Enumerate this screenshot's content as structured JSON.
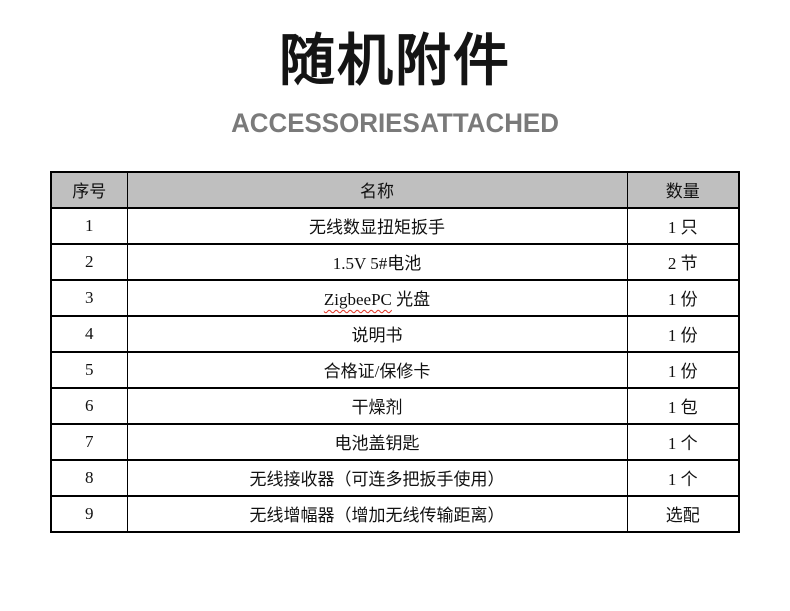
{
  "header": {
    "title_zh": "随机附件",
    "title_en": "ACCESSORIES ATTACHED"
  },
  "table": {
    "columns": [
      "序号",
      "名称",
      "数量"
    ],
    "header_bg": "#bfbfbf",
    "border_color": "#000000",
    "spellcheck_color": "#e03020",
    "rows": [
      {
        "no": "1",
        "name": "无线数显扭矩扳手",
        "qty": "1 只"
      },
      {
        "no": "2",
        "name": "1.5V 5#电池",
        "qty": "2 节"
      },
      {
        "no": "3",
        "name": "ZigbeePC 光盘",
        "qty": "1 份",
        "misspelled": "ZigbeePC"
      },
      {
        "no": "4",
        "name": "说明书",
        "qty": "1 份"
      },
      {
        "no": "5",
        "name": "合格证/保修卡",
        "qty": "1 份"
      },
      {
        "no": "6",
        "name": "干燥剂",
        "qty": "1 包"
      },
      {
        "no": "7",
        "name": "电池盖钥匙",
        "qty": "1 个"
      },
      {
        "no": "8",
        "name": "无线接收器（可连多把扳手使用）",
        "qty": "1 个"
      },
      {
        "no": "9",
        "name": "无线增幅器（增加无线传输距离）",
        "qty": "选配"
      }
    ]
  }
}
